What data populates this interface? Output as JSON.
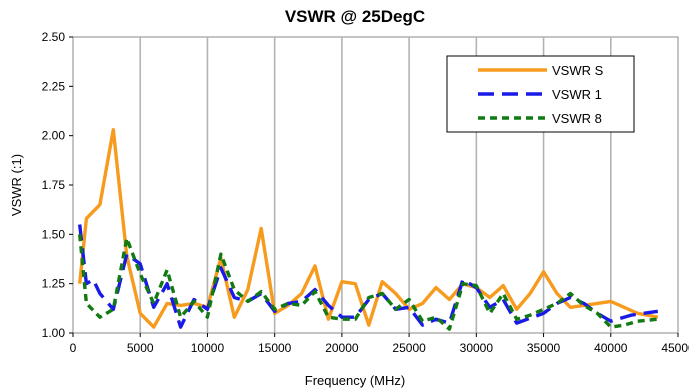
{
  "chart_data": {
    "type": "line",
    "title": "VSWR @ 25DegC",
    "xlabel": "Frequency (MHz)",
    "ylabel": "VSWR (:1)",
    "xlim": [
      0,
      45000
    ],
    "ylim": [
      1.0,
      2.5
    ],
    "x_ticks": [
      0,
      5000,
      10000,
      15000,
      20000,
      25000,
      30000,
      35000,
      40000,
      45000
    ],
    "x_tick_labels": [
      "0",
      "5000",
      "10000",
      "15000",
      "20000",
      "25000",
      "30000",
      "35000",
      "40000",
      "45000"
    ],
    "y_ticks": [
      1.0,
      1.25,
      1.5,
      1.75,
      2.0,
      2.25,
      2.5
    ],
    "y_tick_labels": [
      "1.00",
      "1.25",
      "1.50",
      "1.75",
      "2.00",
      "2.25",
      "2.50"
    ],
    "grid": "vertical",
    "legend": {
      "position": "top-right"
    },
    "series": [
      {
        "name": "VSWR S",
        "color": "#F79B1E",
        "dash": "solid",
        "x": [
          500,
          1000,
          2000,
          3000,
          4000,
          5000,
          6000,
          7000,
          8000,
          9000,
          10000,
          11000,
          12000,
          13000,
          14000,
          15000,
          16000,
          17000,
          18000,
          19000,
          20000,
          21000,
          22000,
          23000,
          24000,
          25000,
          26000,
          27000,
          28000,
          29000,
          30000,
          31000,
          32000,
          33000,
          34000,
          35000,
          36000,
          37000,
          38000,
          40000,
          42000,
          43500
        ],
        "y": [
          1.25,
          1.58,
          1.65,
          2.03,
          1.39,
          1.1,
          1.03,
          1.15,
          1.14,
          1.15,
          1.13,
          1.38,
          1.08,
          1.22,
          1.53,
          1.1,
          1.14,
          1.2,
          1.34,
          1.07,
          1.26,
          1.25,
          1.04,
          1.26,
          1.2,
          1.12,
          1.15,
          1.23,
          1.17,
          1.25,
          1.23,
          1.18,
          1.24,
          1.12,
          1.2,
          1.31,
          1.2,
          1.13,
          1.14,
          1.16,
          1.1,
          1.08
        ]
      },
      {
        "name": "VSWR 1",
        "color": "#1A1AE6",
        "dash": "long-dash",
        "x": [
          500,
          1000,
          1500,
          2000,
          3000,
          4000,
          5000,
          6000,
          7000,
          8000,
          9000,
          10000,
          11000,
          12000,
          13000,
          14000,
          15000,
          16000,
          17000,
          18000,
          19000,
          20000,
          21000,
          22000,
          23000,
          24000,
          25000,
          26000,
          27000,
          28000,
          29000,
          30000,
          31000,
          32000,
          33000,
          35000,
          36000,
          37000,
          38000,
          39000,
          40000,
          41500,
          43500
        ],
        "y": [
          1.55,
          1.25,
          1.27,
          1.2,
          1.12,
          1.4,
          1.35,
          1.13,
          1.25,
          1.03,
          1.17,
          1.12,
          1.33,
          1.18,
          1.16,
          1.2,
          1.11,
          1.15,
          1.16,
          1.22,
          1.14,
          1.08,
          1.08,
          1.17,
          1.2,
          1.12,
          1.13,
          1.04,
          1.07,
          1.05,
          1.27,
          1.23,
          1.13,
          1.17,
          1.05,
          1.1,
          1.15,
          1.18,
          1.15,
          1.1,
          1.06,
          1.09,
          1.11
        ]
      },
      {
        "name": "VSWR 8",
        "color": "#127A12",
        "dash": "short-dash",
        "x": [
          500,
          1000,
          2000,
          3000,
          4000,
          5000,
          6000,
          7000,
          8000,
          9000,
          10000,
          11000,
          12000,
          13000,
          14000,
          15000,
          16000,
          17000,
          18000,
          19000,
          20000,
          21000,
          22000,
          23000,
          24000,
          25000,
          26000,
          27000,
          28000,
          29000,
          30000,
          31000,
          32000,
          33000,
          34000,
          35000,
          36000,
          37000,
          38000,
          39000,
          40000,
          41000,
          42000,
          43500
        ],
        "y": [
          1.5,
          1.15,
          1.08,
          1.12,
          1.48,
          1.3,
          1.15,
          1.32,
          1.08,
          1.16,
          1.08,
          1.4,
          1.22,
          1.16,
          1.21,
          1.12,
          1.15,
          1.14,
          1.21,
          1.08,
          1.07,
          1.07,
          1.18,
          1.2,
          1.12,
          1.17,
          1.06,
          1.08,
          1.02,
          1.25,
          1.24,
          1.1,
          1.2,
          1.07,
          1.09,
          1.12,
          1.15,
          1.2,
          1.14,
          1.1,
          1.03,
          1.04,
          1.06,
          1.07
        ]
      }
    ]
  }
}
